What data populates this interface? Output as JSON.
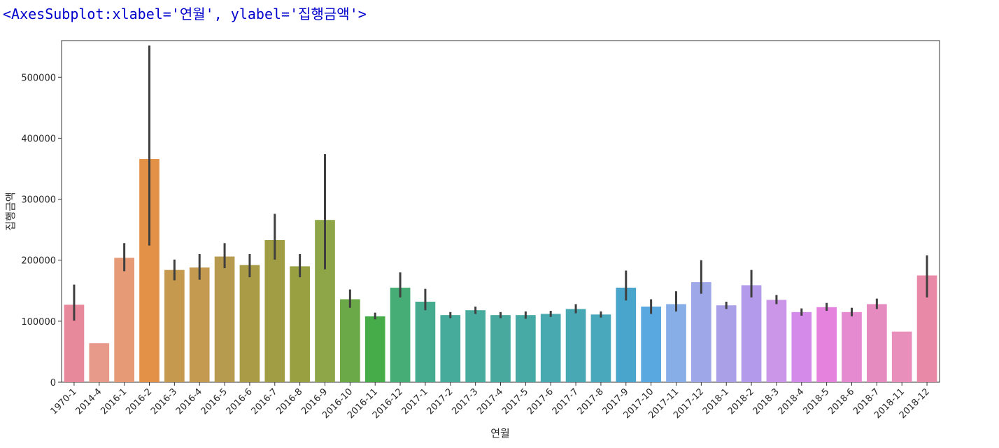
{
  "output_repr": "<AxesSubplot:xlabel='연월', ylabel='집행금액'>",
  "chart_data": {
    "type": "bar",
    "xlabel": "연월",
    "ylabel": "집행금액",
    "ylim": [
      0,
      560000
    ],
    "yticks": [
      0,
      100000,
      200000,
      300000,
      400000,
      500000
    ],
    "categories": [
      "1970-1",
      "2014-4",
      "2016-1",
      "2016-2",
      "2016-3",
      "2016-4",
      "2016-5",
      "2016-6",
      "2016-7",
      "2016-8",
      "2016-9",
      "2016-10",
      "2016-11",
      "2016-12",
      "2017-1",
      "2017-2",
      "2017-3",
      "2017-4",
      "2017-5",
      "2017-6",
      "2017-7",
      "2017-8",
      "2017-9",
      "2017-10",
      "2017-11",
      "2017-12",
      "2018-1",
      "2018-2",
      "2018-3",
      "2018-4",
      "2018-5",
      "2018-6",
      "2018-7",
      "2018-11",
      "2018-12"
    ],
    "values": [
      127000,
      64000,
      204000,
      366000,
      184000,
      188000,
      206000,
      192000,
      233000,
      190000,
      266000,
      136000,
      108000,
      155000,
      132000,
      110000,
      118000,
      110000,
      110000,
      112000,
      120000,
      111000,
      155000,
      124000,
      128000,
      164000,
      126000,
      159000,
      135000,
      115000,
      123000,
      115000,
      128000,
      83000,
      175000
    ],
    "error_low": [
      101000,
      null,
      182000,
      224000,
      167000,
      168000,
      187000,
      172000,
      201000,
      172000,
      185000,
      122000,
      103000,
      139000,
      118000,
      105000,
      112000,
      105000,
      104000,
      107000,
      113000,
      106000,
      134000,
      112000,
      116000,
      145000,
      120000,
      139000,
      128000,
      109000,
      117000,
      108000,
      120000,
      null,
      139000
    ],
    "error_high": [
      160000,
      null,
      228000,
      552000,
      201000,
      210000,
      228000,
      210000,
      276000,
      210000,
      374000,
      152000,
      114000,
      180000,
      153000,
      115000,
      124000,
      115000,
      116000,
      117000,
      128000,
      116000,
      183000,
      136000,
      149000,
      200000,
      132000,
      184000,
      143000,
      121000,
      130000,
      122000,
      137000,
      null,
      208000
    ],
    "colors": [
      "#e8899b",
      "#e89a8a",
      "#e69a76",
      "#e39147",
      "#c59a4f",
      "#c39a4f",
      "#b69a4e",
      "#aa9b47",
      "#a09d44",
      "#98a042",
      "#8ea647",
      "#6ba847",
      "#46ac49",
      "#45ad75",
      "#46ac90",
      "#47ab9b",
      "#47ab9d",
      "#48aa9f",
      "#48aaa4",
      "#48aab0",
      "#48a9b4",
      "#4aa8bc",
      "#4aa5cc",
      "#5aa8e0",
      "#88aee8",
      "#9ea8e9",
      "#aaa0e8",
      "#b39aea",
      "#cb96e7",
      "#d38ae8",
      "#e582de",
      "#e58ad0",
      "#e68bc0",
      "#e88fbc",
      "#e889a8"
    ]
  }
}
